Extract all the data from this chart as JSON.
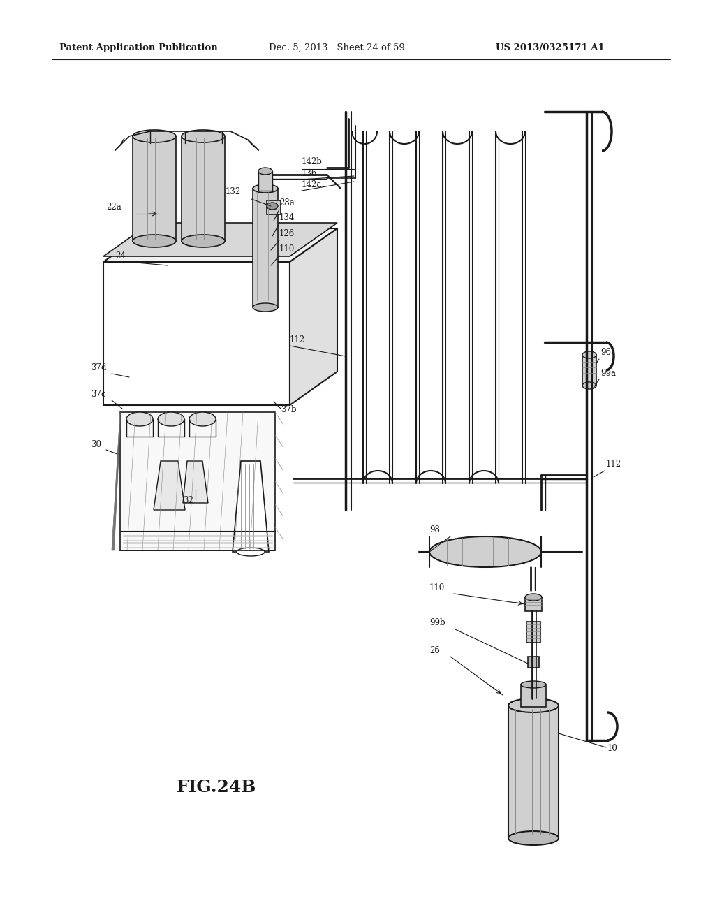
{
  "title_left": "Patent Application Publication",
  "title_mid": "Dec. 5, 2013   Sheet 24 of 59",
  "title_right": "US 2013/0325171 A1",
  "fig_label": "FIG.24B",
  "bg_color": "#ffffff",
  "lc": "#1a1a1a"
}
